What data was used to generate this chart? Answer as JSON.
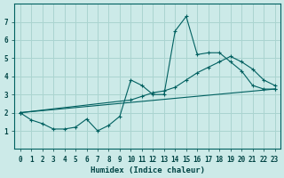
{
  "title": "",
  "xlabel": "Humidex (Indice chaleur)",
  "ylabel": "",
  "bg_color": "#cceae8",
  "grid_color": "#aad4d0",
  "line_color": "#006060",
  "xlim": [
    -0.5,
    23.5
  ],
  "ylim": [
    0,
    8
  ],
  "xticks": [
    0,
    1,
    2,
    3,
    4,
    5,
    6,
    7,
    8,
    9,
    10,
    11,
    12,
    13,
    14,
    15,
    16,
    17,
    18,
    19,
    20,
    21,
    22,
    23
  ],
  "yticks": [
    1,
    2,
    3,
    4,
    5,
    6,
    7
  ],
  "series1_x": [
    0,
    1,
    2,
    3,
    4,
    5,
    6,
    7,
    8,
    9,
    10,
    11,
    12,
    13,
    14,
    15,
    16,
    17,
    18,
    19,
    20,
    21,
    22,
    23
  ],
  "series1_y": [
    2.0,
    1.6,
    1.4,
    1.1,
    1.1,
    1.2,
    1.65,
    1.0,
    1.3,
    1.8,
    3.8,
    3.5,
    3.0,
    3.0,
    6.5,
    7.3,
    5.2,
    5.3,
    5.3,
    4.8,
    4.3,
    3.5,
    3.3,
    3.3
  ],
  "series2_x": [
    0,
    23
  ],
  "series2_y": [
    2.0,
    3.3
  ],
  "series3_x": [
    0,
    10,
    11,
    12,
    13,
    14,
    15,
    16,
    17,
    18,
    19,
    20,
    21,
    22,
    23
  ],
  "series3_y": [
    2.0,
    2.7,
    2.9,
    3.1,
    3.2,
    3.4,
    3.8,
    4.2,
    4.5,
    4.8,
    5.1,
    4.8,
    4.4,
    3.8,
    3.5
  ]
}
